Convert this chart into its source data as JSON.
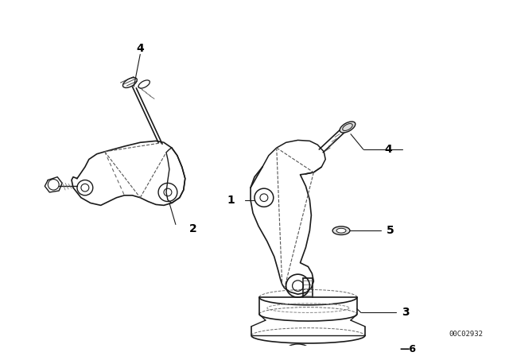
{
  "background_color": "#ffffff",
  "line_color": "#1a1a1a",
  "label_color": "#000000",
  "watermark": "00C02932",
  "figsize": [
    6.4,
    4.48
  ],
  "dpi": 100,
  "label_fontsize": 10,
  "label_bold": true,
  "parts": {
    "left_bracket_label": "2",
    "right_bracket_label": "1",
    "engine_mount_label": "3",
    "bolt_top_label": "4",
    "bolt_right_label": "4",
    "nut_label": "5",
    "bottom_bolt_label": "6"
  }
}
